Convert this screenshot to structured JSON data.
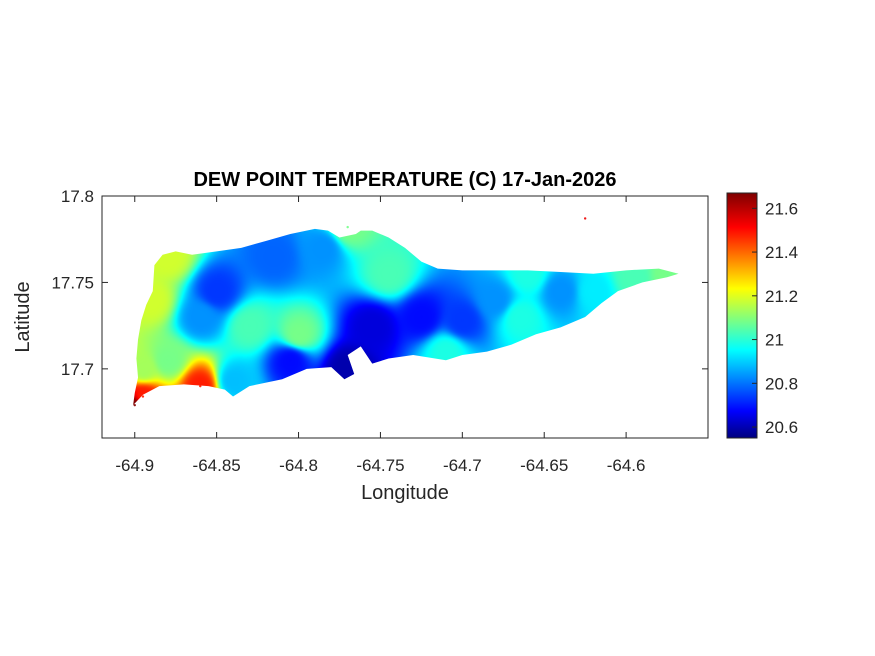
{
  "chart_data": {
    "type": "heatmap",
    "title": "DEW POINT TEMPERATURE (C) 17-Jan-2026",
    "xlabel": "Longitude",
    "ylabel": "Latitude",
    "xlim": [
      -64.92,
      -64.55
    ],
    "ylim": [
      17.66,
      17.8
    ],
    "xticks": [
      -64.9,
      -64.85,
      -64.8,
      -64.75,
      -64.7,
      -64.65,
      -64.6
    ],
    "xtick_labels": [
      "-64.9",
      "-64.85",
      "-64.8",
      "-64.75",
      "-64.7",
      "-64.65",
      "-64.6"
    ],
    "yticks": [
      17.7,
      17.75,
      17.8
    ],
    "ytick_labels": [
      "17.7",
      "17.75",
      "17.8"
    ],
    "colorbar": {
      "colormap": "jet",
      "range": [
        20.55,
        21.67
      ],
      "ticks": [
        20.6,
        20.8,
        21,
        21.2,
        21.4,
        21.6
      ],
      "tick_labels": [
        "20.6",
        "20.8",
        "21",
        "21.2",
        "21.4",
        "21.6"
      ]
    },
    "grid": false,
    "field_points": [
      {
        "lon": -64.9,
        "lat": 17.679,
        "value": 21.67
      },
      {
        "lon": -64.895,
        "lat": 17.684,
        "value": 21.5
      },
      {
        "lon": -64.86,
        "lat": 17.69,
        "value": 21.5
      },
      {
        "lon": -64.895,
        "lat": 17.7,
        "value": 21.15
      },
      {
        "lon": -64.88,
        "lat": 17.705,
        "value": 21.1
      },
      {
        "lon": -64.89,
        "lat": 17.74,
        "value": 21.2
      },
      {
        "lon": -64.88,
        "lat": 17.765,
        "value": 21.2
      },
      {
        "lon": -64.85,
        "lat": 17.745,
        "value": 20.75
      },
      {
        "lon": -64.86,
        "lat": 17.73,
        "value": 20.85
      },
      {
        "lon": -64.815,
        "lat": 17.765,
        "value": 20.8
      },
      {
        "lon": -64.785,
        "lat": 17.77,
        "value": 20.85
      },
      {
        "lon": -64.83,
        "lat": 17.725,
        "value": 21.05
      },
      {
        "lon": -64.8,
        "lat": 17.72,
        "value": 21.1
      },
      {
        "lon": -64.805,
        "lat": 17.705,
        "value": 20.7
      },
      {
        "lon": -64.84,
        "lat": 17.693,
        "value": 20.9
      },
      {
        "lon": -64.77,
        "lat": 17.7,
        "value": 20.6
      },
      {
        "lon": -64.755,
        "lat": 17.725,
        "value": 20.65
      },
      {
        "lon": -64.745,
        "lat": 17.755,
        "value": 21.05
      },
      {
        "lon": -64.725,
        "lat": 17.73,
        "value": 20.7
      },
      {
        "lon": -64.7,
        "lat": 17.728,
        "value": 20.75
      },
      {
        "lon": -64.71,
        "lat": 17.71,
        "value": 21.0
      },
      {
        "lon": -64.68,
        "lat": 17.74,
        "value": 20.85
      },
      {
        "lon": -64.665,
        "lat": 17.73,
        "value": 21.0
      },
      {
        "lon": -64.64,
        "lat": 17.745,
        "value": 20.85
      },
      {
        "lon": -64.62,
        "lat": 17.745,
        "value": 20.95
      },
      {
        "lon": -64.595,
        "lat": 17.753,
        "value": 21.05
      },
      {
        "lon": -64.575,
        "lat": 17.755,
        "value": 21.1
      },
      {
        "lon": -64.77,
        "lat": 17.782,
        "value": 21.1
      },
      {
        "lon": -64.66,
        "lat": 17.755,
        "value": 21.0
      },
      {
        "lon": -64.625,
        "lat": 17.787,
        "value": 21.55
      }
    ],
    "island_outline": [
      [
        -64.901,
        17.679
      ],
      [
        -64.895,
        17.685
      ],
      [
        -64.885,
        17.69
      ],
      [
        -64.87,
        17.691
      ],
      [
        -64.855,
        17.69
      ],
      [
        -64.845,
        17.688
      ],
      [
        -64.84,
        17.684
      ],
      [
        -64.83,
        17.69
      ],
      [
        -64.81,
        17.694
      ],
      [
        -64.795,
        17.7
      ],
      [
        -64.78,
        17.701
      ],
      [
        -64.772,
        17.694
      ],
      [
        -64.766,
        17.697
      ],
      [
        -64.77,
        17.708
      ],
      [
        -64.762,
        17.713
      ],
      [
        -64.755,
        17.703
      ],
      [
        -64.745,
        17.706
      ],
      [
        -64.73,
        17.708
      ],
      [
        -64.71,
        17.705
      ],
      [
        -64.7,
        17.708
      ],
      [
        -64.685,
        17.71
      ],
      [
        -64.67,
        17.714
      ],
      [
        -64.655,
        17.72
      ],
      [
        -64.64,
        17.724
      ],
      [
        -64.625,
        17.73
      ],
      [
        -64.615,
        17.738
      ],
      [
        -64.605,
        17.745
      ],
      [
        -64.59,
        17.75
      ],
      [
        -64.575,
        17.753
      ],
      [
        -64.568,
        17.755
      ],
      [
        -64.58,
        17.758
      ],
      [
        -64.6,
        17.757
      ],
      [
        -64.62,
        17.755
      ],
      [
        -64.64,
        17.756
      ],
      [
        -64.66,
        17.757
      ],
      [
        -64.68,
        17.757
      ],
      [
        -64.7,
        17.757
      ],
      [
        -64.715,
        17.758
      ],
      [
        -64.725,
        17.762
      ],
      [
        -64.735,
        17.77
      ],
      [
        -64.745,
        17.776
      ],
      [
        -64.755,
        17.78
      ],
      [
        -64.762,
        17.78
      ],
      [
        -64.765,
        17.778
      ],
      [
        -64.775,
        17.776
      ],
      [
        -64.782,
        17.78
      ],
      [
        -64.79,
        17.781
      ],
      [
        -64.805,
        17.778
      ],
      [
        -64.82,
        17.774
      ],
      [
        -64.835,
        17.77
      ],
      [
        -64.85,
        17.768
      ],
      [
        -64.865,
        17.766
      ],
      [
        -64.875,
        17.768
      ],
      [
        -64.883,
        17.766
      ],
      [
        -64.888,
        17.76
      ],
      [
        -64.889,
        17.745
      ],
      [
        -64.893,
        17.737
      ],
      [
        -64.896,
        17.728
      ],
      [
        -64.898,
        17.717
      ],
      [
        -64.899,
        17.706
      ],
      [
        -64.898,
        17.695
      ],
      [
        -64.9,
        17.686
      ]
    ]
  }
}
